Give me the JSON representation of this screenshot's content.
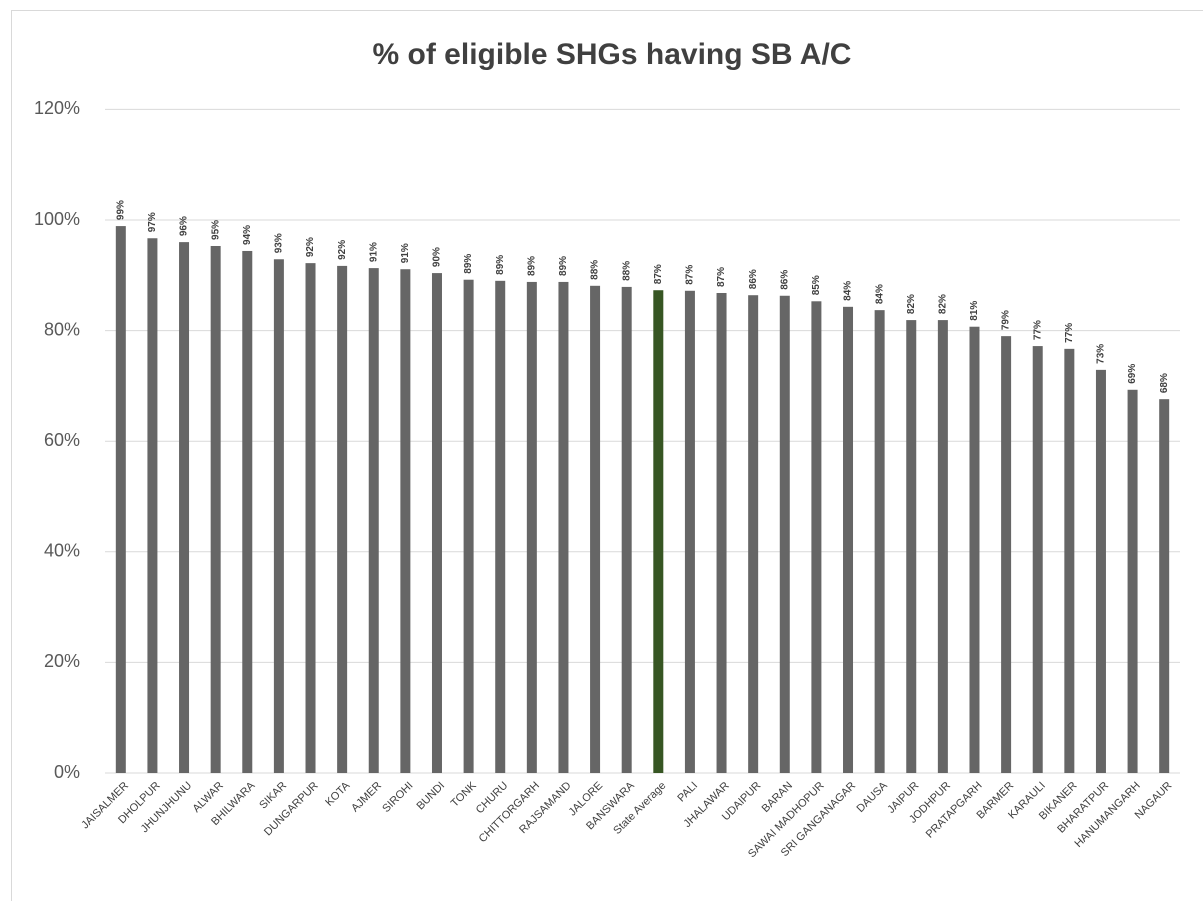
{
  "chart_data": {
    "type": "bar",
    "title": "% of eligible SHGs having SB A/C",
    "categories": [
      "JAISALMER",
      "DHOLPUR",
      "JHUNJHUNU",
      "ALWAR",
      "BHILWARA",
      "SIKAR",
      "DUNGARPUR",
      "KOTA",
      "AJMER",
      "SIROHI",
      "BUNDI",
      "TONK",
      "CHURU",
      "CHITTORGARH",
      "RAJSAMAND",
      "JALORE",
      "BANSWARA",
      "State Average",
      "PALI",
      "JHALAWAR",
      "UDAIPUR",
      "BARAN",
      "SAWAI MADHOPUR",
      "SRI GANGANAGAR",
      "DAUSA",
      "JAIPUR",
      "JODHPUR",
      "PRATAPGARH",
      "BARMER",
      "KARAULI",
      "BIKANER",
      "BHARATPUR",
      "HANUMANGARH",
      "NAGAUR"
    ],
    "values": [
      98.9,
      96.7,
      96.0,
      95.3,
      94.4,
      92.9,
      92.2,
      91.7,
      91.3,
      91.1,
      90.4,
      89.2,
      89.0,
      88.8,
      88.8,
      88.1,
      87.9,
      87.3,
      87.2,
      86.8,
      86.4,
      86.3,
      85.3,
      84.3,
      83.7,
      81.9,
      81.9,
      80.7,
      79.0,
      77.2,
      76.7,
      72.9,
      69.3,
      67.6
    ],
    "value_labels": [
      "99%",
      "97%",
      "96%",
      "95%",
      "94%",
      "93%",
      "92%",
      "92%",
      "91%",
      "91%",
      "90%",
      "89%",
      "89%",
      "89%",
      "89%",
      "88%",
      "88%",
      "87%",
      "87%",
      "87%",
      "86%",
      "86%",
      "85%",
      "84%",
      "84%",
      "82%",
      "82%",
      "81%",
      "79%",
      "77%",
      "77%",
      "73%",
      "69%",
      "68%"
    ],
    "colors": [
      "#666666",
      "#666666",
      "#666666",
      "#666666",
      "#666666",
      "#666666",
      "#666666",
      "#666666",
      "#666666",
      "#666666",
      "#666666",
      "#666666",
      "#666666",
      "#666666",
      "#666666",
      "#666666",
      "#666666",
      "#375623",
      "#666666",
      "#666666",
      "#666666",
      "#666666",
      "#666666",
      "#666666",
      "#666666",
      "#666666",
      "#666666",
      "#666666",
      "#666666",
      "#666666",
      "#666666",
      "#666666",
      "#666666",
      "#666666"
    ],
    "ylim": [
      0,
      120
    ],
    "yticks": [
      {
        "value": 0,
        "label": "0%"
      },
      {
        "value": 20,
        "label": "20%"
      },
      {
        "value": 40,
        "label": "40%"
      },
      {
        "value": 60,
        "label": "60%"
      },
      {
        "value": 80,
        "label": "80%"
      },
      {
        "value": 100,
        "label": "100%"
      },
      {
        "value": 120,
        "label": "120%"
      }
    ],
    "grid": true
  }
}
